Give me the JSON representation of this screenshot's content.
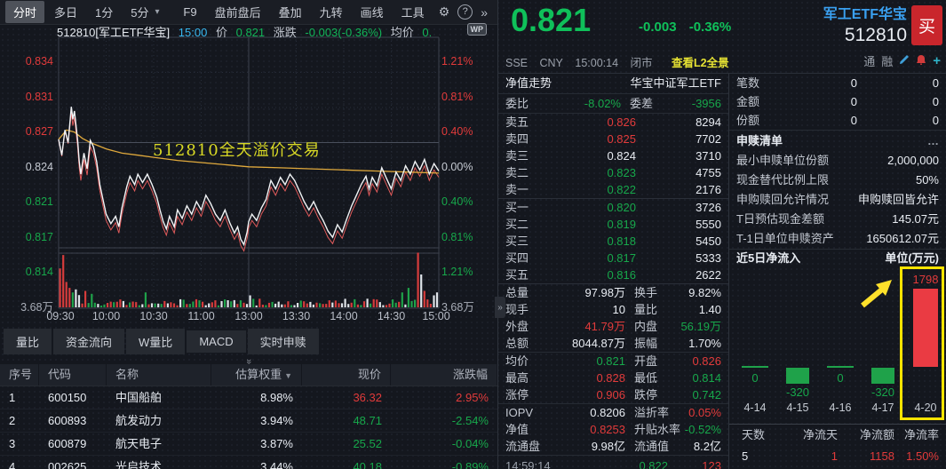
{
  "colors": {
    "up_red": "#e23b3b",
    "down_green": "#17a84b",
    "price_green": "#0fc05a",
    "accent_yellow": "#ffe400",
    "avg_line": "#e0a93c",
    "link_blue": "#3aa0f0",
    "buy_red": "#c9262c",
    "white_line": "#f2f4f6",
    "index_pink": "#e05a5a"
  },
  "toolbar": {
    "items": [
      {
        "label": "分时"
      },
      {
        "label": "多日"
      },
      {
        "label": "1分"
      },
      {
        "label": "5分"
      }
    ],
    "caret": "▾",
    "right_items": [
      {
        "label": "F9"
      },
      {
        "label": "盘前盘后"
      },
      {
        "label": "叠加"
      },
      {
        "label": "九转"
      },
      {
        "label": "画线"
      },
      {
        "label": "工具"
      }
    ],
    "gear": "⚙",
    "help": "?",
    "more": "»"
  },
  "chart": {
    "header": {
      "symbol": "512810[军工ETF华宝]",
      "time": "15:00",
      "price_label": "价",
      "price": "0.821",
      "change_label": "涨跌",
      "change": "-0.003(-0.36%)",
      "avg_label": "均价",
      "avg_value": "0."
    },
    "wp": "WP",
    "annotation": "512810全天溢价交易",
    "y_left": [
      "0.834",
      "0.831",
      "0.827",
      "0.824",
      "0.821",
      "0.817",
      "0.814"
    ],
    "y_right": [
      "1.21%",
      "0.81%",
      "0.40%",
      "0.00%",
      "0.40%",
      "0.81%",
      "1.21%"
    ],
    "vol_left": "3.68万",
    "vol_right": "3.68万",
    "x_ticks": [
      "09:30",
      "10:00",
      "10:30",
      "11:00",
      "13:00",
      "13:30",
      "14:00",
      "14:30",
      "15:00"
    ]
  },
  "chart_data": [
    {
      "type": "line",
      "symbol": "512810",
      "session_minutes": 240,
      "x_ticks": [
        "09:30",
        "10:00",
        "10:30",
        "11:00",
        "13:00",
        "13:30",
        "14:00",
        "14:30",
        "15:00"
      ],
      "y_axis_price": [
        0.834,
        0.831,
        0.827,
        0.824,
        0.821,
        0.817,
        0.814
      ],
      "y_axis_pct": [
        "1.21%",
        "0.81%",
        "0.40%",
        "0.00%",
        "-0.40%",
        "-0.81%",
        "-1.21%"
      ],
      "prev_close": 0.824,
      "open": 0.826,
      "high": 0.828,
      "low": 0.814,
      "close": 0.821,
      "volume_axis_wan": 3.68,
      "annotation": "512810全天溢价交易",
      "index_line_offset": 0.0006,
      "series": [
        {
          "name": "price",
          "points": [
            [
              0,
              0.8243
            ],
            [
              2,
              0.8228
            ],
            [
              4,
              0.8252
            ],
            [
              6,
              0.824
            ],
            [
              8,
              0.8274
            ],
            [
              9,
              0.8262
            ],
            [
              10,
              0.827
            ],
            [
              12,
              0.8242
            ],
            [
              13,
              0.8222
            ],
            [
              14,
              0.821
            ],
            [
              16,
              0.823
            ],
            [
              18,
              0.8215
            ],
            [
              20,
              0.8242
            ],
            [
              22,
              0.8236
            ],
            [
              24,
              0.8222
            ],
            [
              26,
              0.82
            ],
            [
              28,
              0.8186
            ],
            [
              30,
              0.8172
            ],
            [
              33,
              0.8163
            ],
            [
              36,
              0.817
            ],
            [
              38,
              0.816
            ],
            [
              40,
              0.8178
            ],
            [
              43,
              0.8198
            ],
            [
              45,
              0.8208
            ],
            [
              48,
              0.82
            ],
            [
              50,
              0.821
            ],
            [
              53,
              0.8202
            ],
            [
              56,
              0.821
            ],
            [
              59,
              0.82
            ],
            [
              62,
              0.8188
            ],
            [
              64,
              0.8176
            ],
            [
              66,
              0.8165
            ],
            [
              68,
              0.8158
            ],
            [
              70,
              0.817
            ],
            [
              73,
              0.816
            ],
            [
              75,
              0.8176
            ],
            [
              78,
              0.8168
            ],
            [
              81,
              0.818
            ],
            [
              84,
              0.8172
            ],
            [
              87,
              0.8184
            ],
            [
              90,
              0.8176
            ],
            [
              93,
              0.819
            ],
            [
              96,
              0.8182
            ],
            [
              99,
              0.8172
            ],
            [
              102,
              0.8166
            ],
            [
              105,
              0.8176
            ],
            [
              108,
              0.8164
            ],
            [
              111,
              0.8154
            ],
            [
              113,
              0.816
            ],
            [
              115,
              0.8148
            ],
            [
              117,
              0.8143
            ],
            [
              119,
              0.8155
            ],
            [
              120,
              0.8165
            ],
            [
              122,
              0.8172
            ],
            [
              125,
              0.8166
            ],
            [
              128,
              0.8178
            ],
            [
              131,
              0.8186
            ],
            [
              134,
              0.8204
            ],
            [
              137,
              0.8196
            ],
            [
              140,
              0.8207
            ],
            [
              143,
              0.82
            ],
            [
              146,
              0.821
            ],
            [
              149,
              0.8204
            ],
            [
              152,
              0.8194
            ],
            [
              155,
              0.8184
            ],
            [
              158,
              0.8176
            ],
            [
              161,
              0.8184
            ],
            [
              164,
              0.8174
            ],
            [
              167,
              0.8166
            ],
            [
              170,
              0.8156
            ],
            [
              173,
              0.815
            ],
            [
              176,
              0.8162
            ],
            [
              179,
              0.8155
            ],
            [
              182,
              0.8168
            ],
            [
              185,
              0.818
            ],
            [
              188,
              0.819
            ],
            [
              191,
              0.82
            ],
            [
              194,
              0.8208
            ],
            [
              196,
              0.8196
            ],
            [
              198,
              0.8207
            ],
            [
              201,
              0.8199
            ],
            [
              204,
              0.8216
            ],
            [
              207,
              0.8206
            ],
            [
              210,
              0.8196
            ],
            [
              213,
              0.8212
            ],
            [
              216,
              0.8204
            ],
            [
              219,
              0.8218
            ],
            [
              222,
              0.821
            ],
            [
              225,
              0.8222
            ],
            [
              228,
              0.8214
            ],
            [
              231,
              0.8224
            ],
            [
              234,
              0.821
            ],
            [
              237,
              0.822
            ],
            [
              240,
              0.8213
            ]
          ]
        },
        {
          "name": "avg",
          "points": [
            [
              0,
              0.8243
            ],
            [
              5,
              0.8252
            ],
            [
              10,
              0.825
            ],
            [
              15,
              0.8244
            ],
            [
              20,
              0.824
            ],
            [
              30,
              0.8234
            ],
            [
              40,
              0.823
            ],
            [
              50,
              0.8228
            ],
            [
              60,
              0.8226
            ],
            [
              75,
              0.8223
            ],
            [
              90,
              0.8221
            ],
            [
              105,
              0.8219
            ],
            [
              120,
              0.8217
            ],
            [
              140,
              0.8216
            ],
            [
              160,
              0.8215
            ],
            [
              180,
              0.8214
            ],
            [
              200,
              0.8213
            ],
            [
              220,
              0.8212
            ],
            [
              240,
              0.8211
            ]
          ]
        }
      ],
      "volume": {
        "bars": 120,
        "max_wan": 7.36,
        "spikes": {
          "0": [
            5.2,
            "r"
          ],
          "1": [
            7.0,
            "r"
          ],
          "2": [
            3.4,
            "r"
          ],
          "3": [
            2.6,
            "r"
          ],
          "4": [
            2.0,
            "g"
          ],
          "5": [
            2.4,
            "w"
          ],
          "8": [
            2.2,
            "r"
          ],
          "10": [
            1.8,
            "g"
          ],
          "27": [
            2.0,
            "g"
          ],
          "60": [
            1.6,
            "w"
          ],
          "108": [
            2.0,
            "g"
          ],
          "110": [
            2.6,
            "g"
          ],
          "113": [
            7.3,
            "r"
          ],
          "114": [
            4.4,
            "w"
          ],
          "115": [
            2.2,
            "r"
          ],
          "118": [
            1.6,
            "w"
          ],
          "119": [
            2.0,
            "w"
          ]
        }
      }
    },
    {
      "type": "bar",
      "title": "近5日净流入",
      "unit": "单位(万元)",
      "categories": [
        "4-14",
        "4-15",
        "4-16",
        "4-17",
        "4-20"
      ],
      "values": [
        0,
        -320,
        0,
        -320,
        1798
      ],
      "highlight_index": 4
    }
  ],
  "tabs": [
    {
      "label": "量比"
    },
    {
      "label": "资金流向"
    },
    {
      "label": "W量比"
    },
    {
      "label": "MACD"
    },
    {
      "label": "实时申赎"
    }
  ],
  "holdings": {
    "headers": [
      "序号",
      "代码",
      "名称",
      "估算权重",
      "现价",
      "涨跌幅"
    ],
    "sort_icon": "▼",
    "rows": [
      {
        "no": "1",
        "code": "600150",
        "name": "中国船舶",
        "weight": "8.98%",
        "price": "36.32",
        "chg": "2.95%",
        "dir": "up"
      },
      {
        "no": "2",
        "code": "600893",
        "name": "航发动力",
        "weight": "3.94%",
        "price": "48.71",
        "chg": "-2.54%",
        "dir": "down"
      },
      {
        "no": "3",
        "code": "600879",
        "name": "航天电子",
        "weight": "3.87%",
        "price": "25.52",
        "chg": "-0.04%",
        "dir": "down"
      },
      {
        "no": "4",
        "code": "002625",
        "name": "光启技术",
        "weight": "3.44%",
        "price": "40.18",
        "chg": "-0.89%",
        "dir": "down"
      }
    ]
  },
  "quote": {
    "price": "0.821",
    "change": "-0.003",
    "change_pct": "-0.36%",
    "exchange": "SSE",
    "currency": "CNY",
    "time": "15:00:14",
    "status": "闭市",
    "l2_link": "查看L2全景",
    "name": "军工ETF华宝",
    "code": "512810",
    "buy": "买",
    "flag_tong": "通",
    "flag_rong": "融",
    "plus": "+"
  },
  "order_book": {
    "nav_left": "净值走势",
    "nav_right": "华宝中证军工ETF",
    "ratio_label": "委比",
    "ratio": "-8.02%",
    "diff_label": "委差",
    "diff": "-3956",
    "asks": [
      {
        "label": "卖五",
        "price": "0.826",
        "vol": "8294"
      },
      {
        "label": "卖四",
        "price": "0.825",
        "vol": "7702"
      },
      {
        "label": "卖三",
        "price": "0.824",
        "vol": "3710"
      },
      {
        "label": "卖二",
        "price": "0.823",
        "vol": "4755"
      },
      {
        "label": "卖一",
        "price": "0.822",
        "vol": "2176"
      }
    ],
    "bids": [
      {
        "label": "买一",
        "price": "0.820",
        "vol": "3726"
      },
      {
        "label": "买二",
        "price": "0.819",
        "vol": "5550"
      },
      {
        "label": "买三",
        "price": "0.818",
        "vol": "5450"
      },
      {
        "label": "买四",
        "price": "0.817",
        "vol": "5333"
      },
      {
        "label": "买五",
        "price": "0.816",
        "vol": "2622"
      }
    ]
  },
  "stats": {
    "rows": [
      {
        "l1": "总量",
        "v1": "97.98万",
        "l2": "换手",
        "v2": "9.82%"
      },
      {
        "l1": "现手",
        "v1": "10",
        "l2": "量比",
        "v2": "1.40"
      },
      {
        "l1": "外盘",
        "v1": "41.79万",
        "l2": "内盘",
        "v2": "56.19万"
      },
      {
        "l1": "总额",
        "v1": "8044.87万",
        "l2": "振幅",
        "v2": "1.70%"
      },
      {
        "l1": "均价",
        "v1": "0.821",
        "l2": "开盘",
        "v2": "0.826"
      },
      {
        "l1": "最高",
        "v1": "0.828",
        "l2": "最低",
        "v2": "0.814"
      },
      {
        "l1": "涨停",
        "v1": "0.906",
        "l2": "跌停",
        "v2": "0.742"
      },
      {
        "l1": "IOPV",
        "v1": "0.8206",
        "l2": "溢折率",
        "v2": "0.05%"
      },
      {
        "l1": "净值",
        "v1": "0.8253",
        "l2": "升贴水率",
        "v2": "-0.52%"
      },
      {
        "l1": "流通盘",
        "v1": "9.98亿",
        "l2": "流通值",
        "v2": "8.2亿"
      }
    ]
  },
  "tick_partial": {
    "time": "14:59:14",
    "price": "0.822",
    "vol": "123"
  },
  "right_panel": {
    "counters": [
      {
        "label": "笔数",
        "v1": "0",
        "v2": "0"
      },
      {
        "label": "金额",
        "v1": "0",
        "v2": "0"
      },
      {
        "label": "份额",
        "v1": "0",
        "v2": "0"
      }
    ],
    "section_title": "申赎清单",
    "ellipsis": "…",
    "info": [
      {
        "label": "最小申赎单位份额",
        "value": "2,000,000"
      },
      {
        "label": "现金替代比例上限",
        "value": "50%"
      },
      {
        "label": "申购赎回允许情况",
        "value": "申购赎回皆允许"
      },
      {
        "label": "T日预估现金差额",
        "value": "145.07元"
      },
      {
        "label": "T-1日单位申赎资产",
        "value": "1650612.07元"
      }
    ],
    "footer_headers": [
      "天数",
      "净流天",
      "净流额",
      "净流率"
    ],
    "footer_values": [
      "5",
      "1",
      "1158",
      "1.50%"
    ]
  }
}
